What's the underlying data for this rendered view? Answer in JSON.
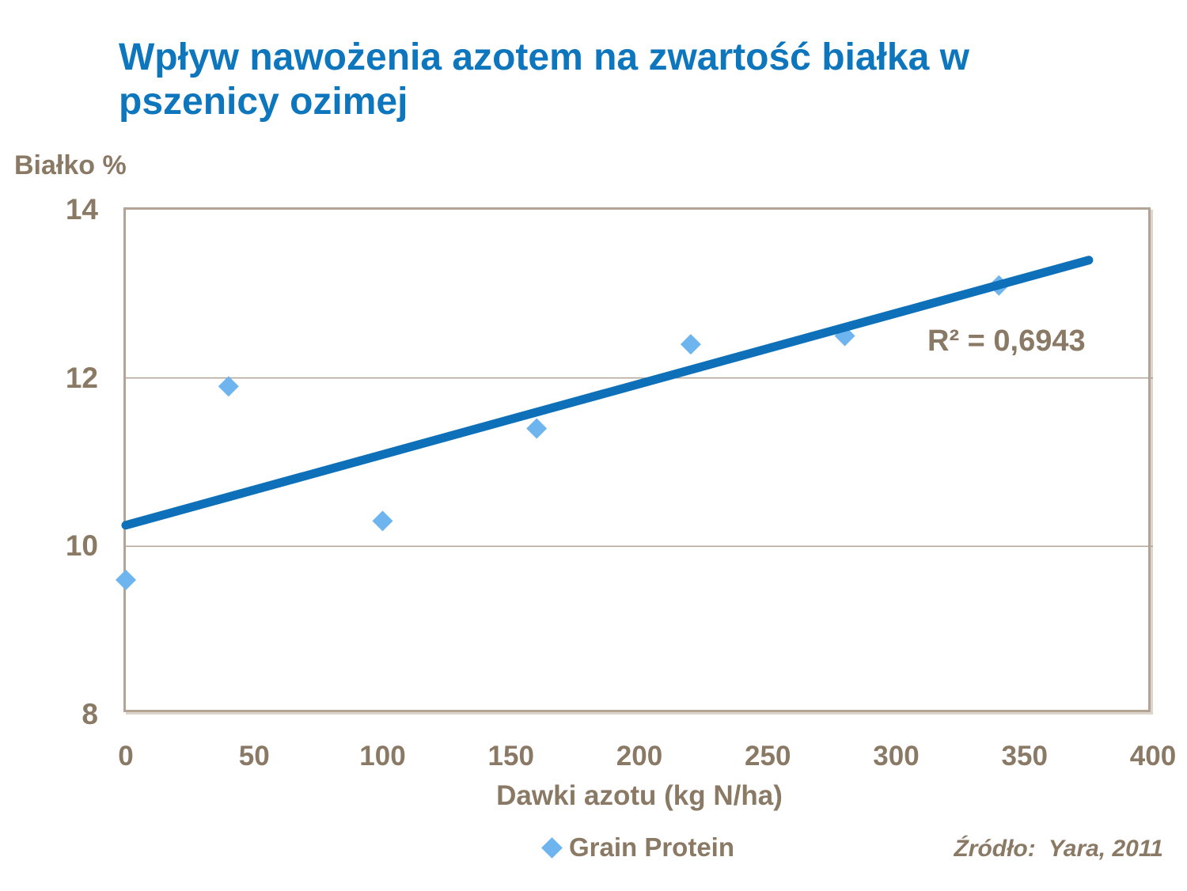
{
  "slide": {
    "title": "Wpływ nawożenia azotem na zwartość białka w pszenicy ozimej"
  },
  "chart_data": {
    "type": "scatter",
    "title": "Wpływ nawożenia azotem na zwartość białka w pszenicy ozimej",
    "y_axis_header": "Białko %",
    "xlabel": "Dawki azotu (kg N/ha)",
    "xlim": [
      0,
      400
    ],
    "ylim": [
      8,
      14
    ],
    "x_ticks": [
      0,
      50,
      100,
      150,
      200,
      250,
      300,
      350,
      400
    ],
    "y_ticks": [
      14,
      12,
      10,
      8
    ],
    "gridlines_y": [
      12,
      10
    ],
    "grid": "horizontal-only",
    "series": [
      {
        "name": "Grain Protein",
        "points": [
          [
            0,
            9.6
          ],
          [
            40,
            11.9
          ],
          [
            100,
            10.3
          ],
          [
            160,
            11.4
          ],
          [
            220,
            12.4
          ],
          [
            280,
            12.5
          ],
          [
            340,
            13.1
          ]
        ]
      }
    ],
    "trendline": {
      "x_start": 0,
      "y_start": 10.25,
      "x_end": 375,
      "y_end": 13.4,
      "r_squared_label": "R² = 0,6943"
    },
    "legend": {
      "label": "Grain Protein",
      "position": "bottom-center"
    },
    "source": "Źródło:  Yara, 2011"
  },
  "colors": {
    "title_blue": "#0e76bd",
    "trendline_blue": "#0d70b8",
    "point_blue": "#6eb5f0",
    "text_brown": "#8a7964",
    "plot_border_tan": "#b3a496",
    "gridline": "#b0a395",
    "background": "#ffffff"
  }
}
